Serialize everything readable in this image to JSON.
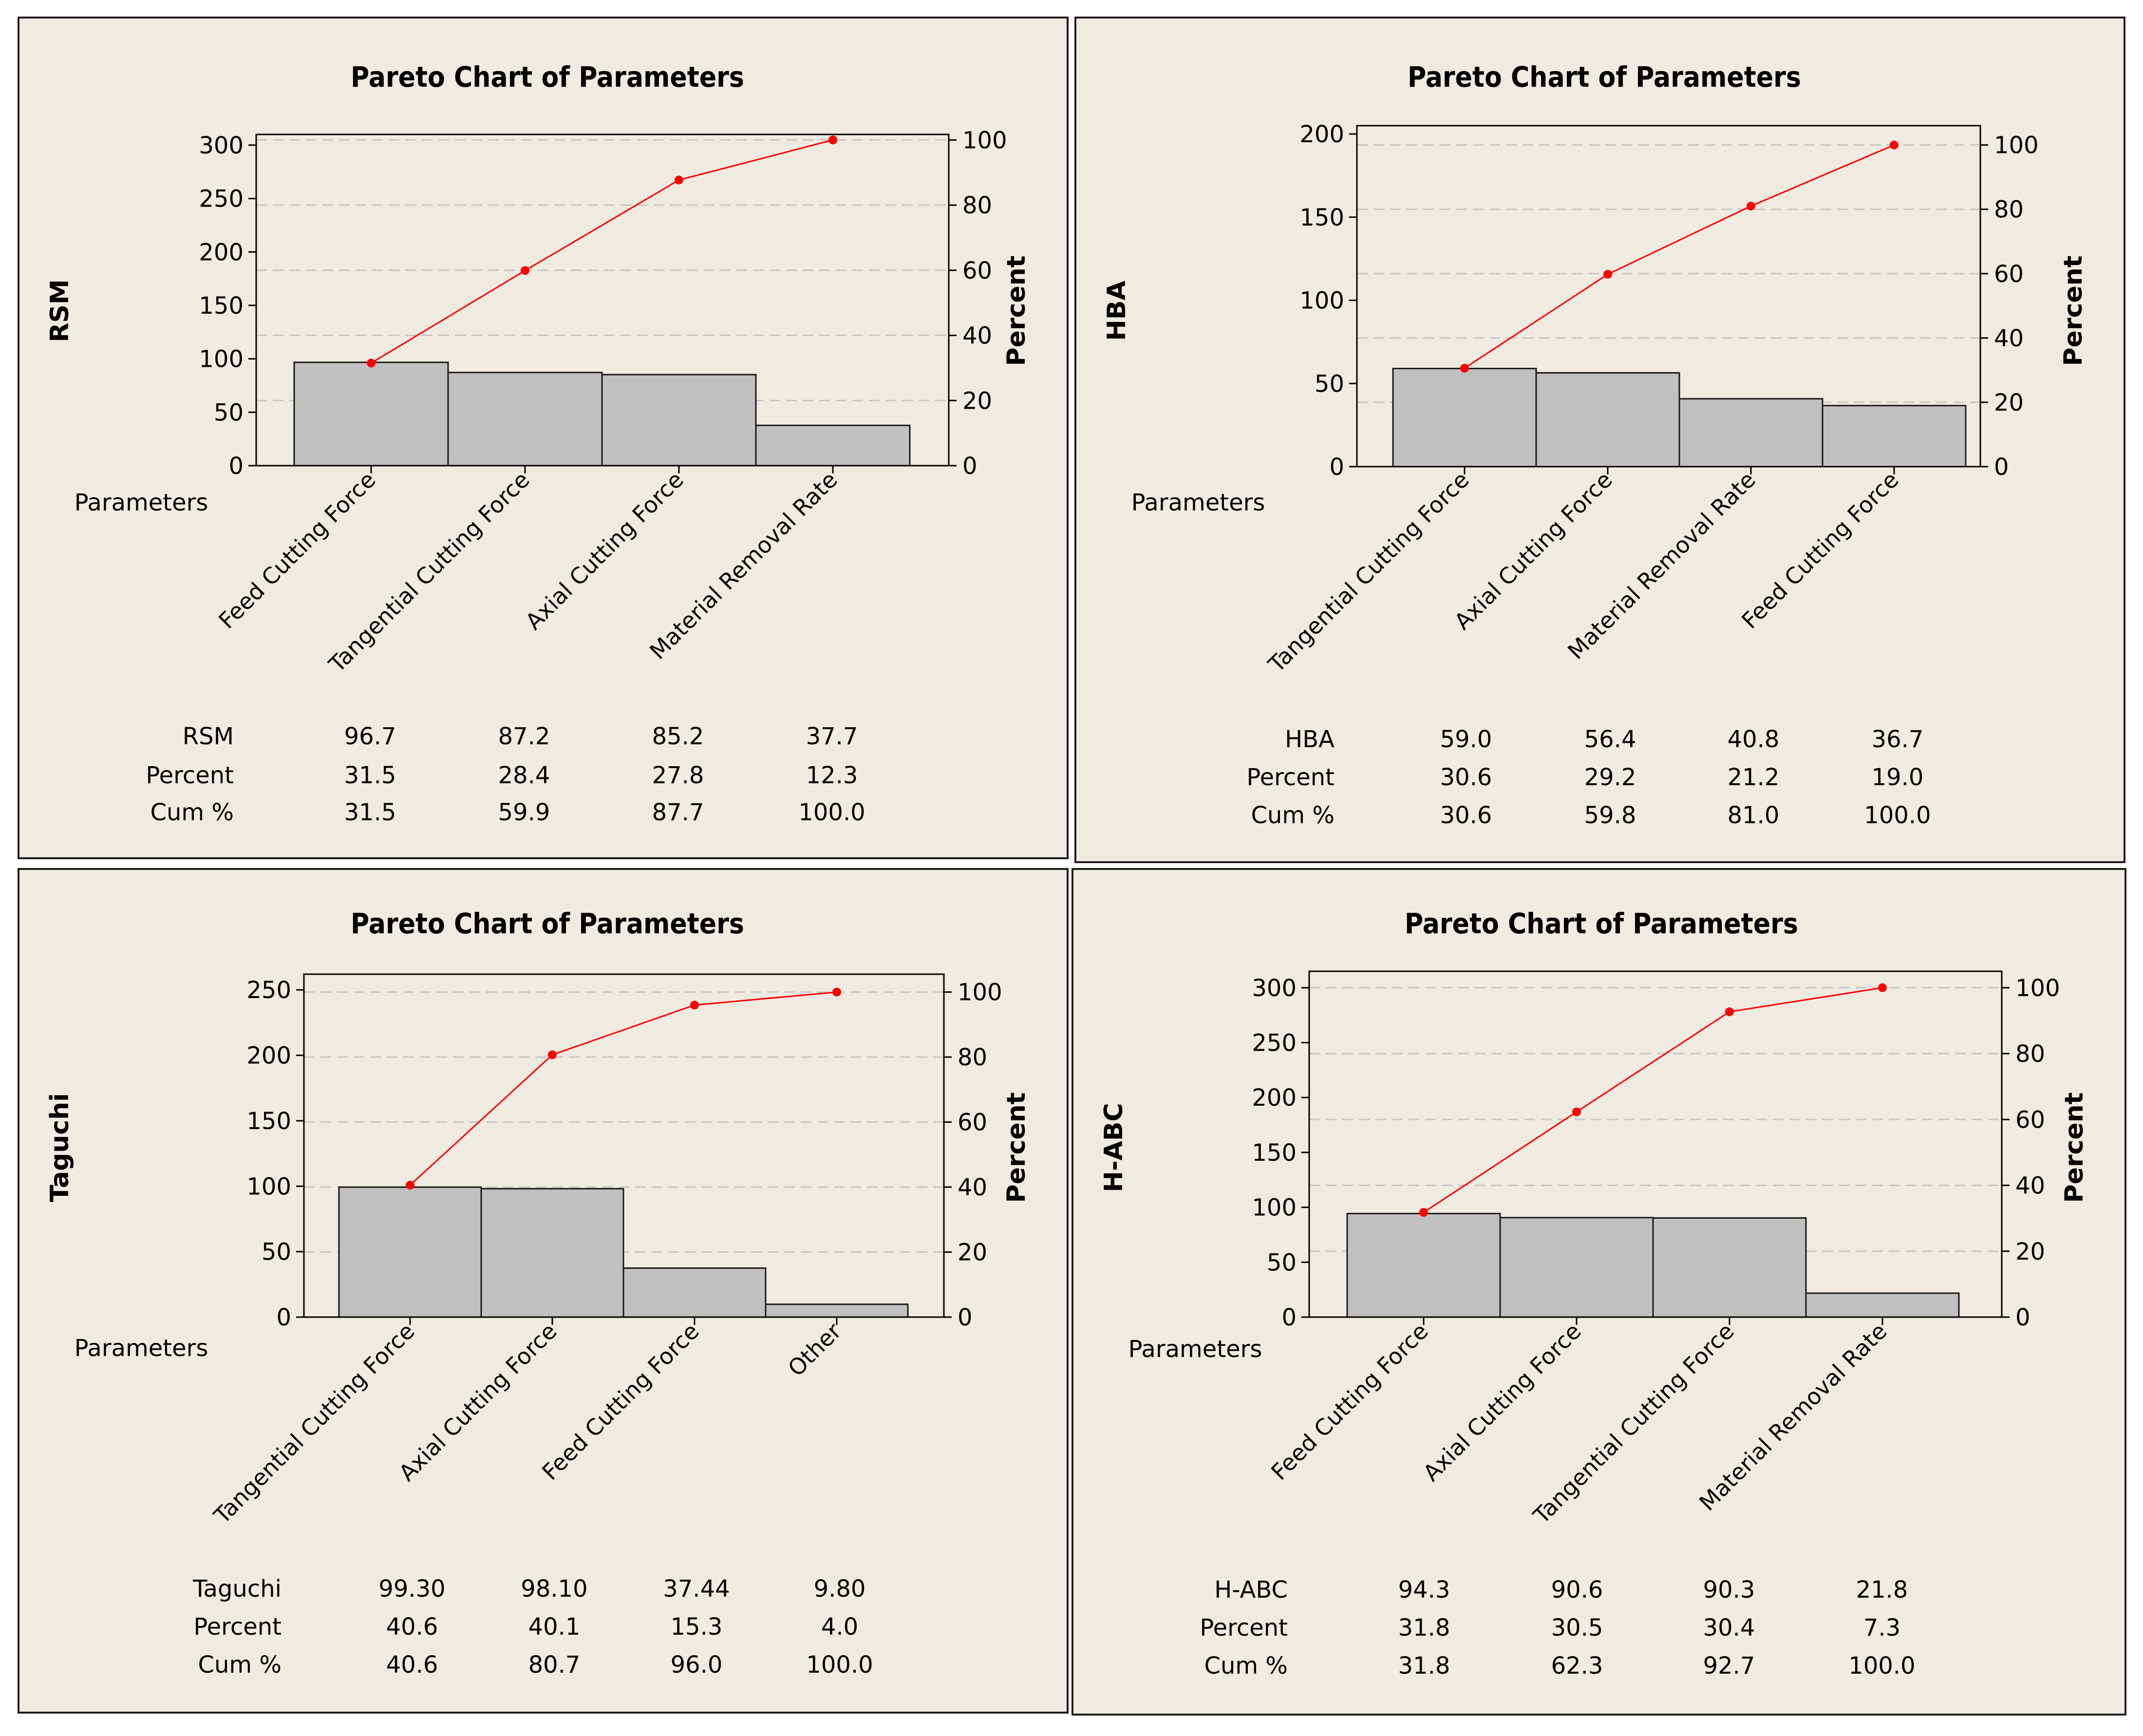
{
  "chart_data": [
    {
      "type": "bar",
      "title": "Pareto Chart of Parameters",
      "ylabel": "RSM",
      "y2label": "Percent",
      "xlabel": "Parameters",
      "ylim": [
        0,
        310
      ],
      "y2lim": [
        0,
        101.7
      ],
      "yticks": [
        0,
        50,
        100,
        150,
        200,
        250,
        300
      ],
      "y2ticks": [
        0,
        20,
        40,
        60,
        80,
        100
      ],
      "categories": [
        "Feed Cutting Force",
        "Tangential Cutting Force",
        "Axial Cutting Force",
        "Material Removal Rate"
      ],
      "values": [
        96.7,
        87.2,
        85.2,
        37.7
      ],
      "percent": [
        31.5,
        28.4,
        27.8,
        12.3
      ],
      "cum_percent": [
        31.5,
        59.9,
        87.7,
        100.0
      ],
      "values_text": [
        "96.7",
        "87.2",
        "85.2",
        "37.7"
      ],
      "percent_text": [
        "31.5",
        "28.4",
        "27.8",
        "12.3"
      ],
      "cum_text": [
        "31.5",
        "59.9",
        "87.7",
        "100.0"
      ],
      "row_labels": [
        "RSM",
        "Percent",
        "Cum %"
      ]
    },
    {
      "type": "bar",
      "title": "Pareto Chart of Parameters",
      "ylabel": "HBA",
      "y2label": "Percent",
      "xlabel": "Parameters",
      "ylim": [
        0,
        205
      ],
      "y2lim": [
        0,
        106
      ],
      "yticks": [
        0,
        50,
        100,
        150,
        200
      ],
      "y2ticks": [
        0,
        20,
        40,
        60,
        80,
        100
      ],
      "categories": [
        "Tangential Cutting Force",
        "Axial Cutting Force",
        "Material Removal Rate",
        "Feed Cutting Force"
      ],
      "values": [
        59.0,
        56.4,
        40.8,
        36.7
      ],
      "percent": [
        30.6,
        29.2,
        21.2,
        19.0
      ],
      "cum_percent": [
        30.6,
        59.8,
        81.0,
        100.0
      ],
      "values_text": [
        "59.0",
        "56.4",
        "40.8",
        "36.7"
      ],
      "percent_text": [
        "30.6",
        "29.2",
        "21.2",
        "19.0"
      ],
      "cum_text": [
        "30.6",
        "59.8",
        "81.0",
        "100.0"
      ],
      "row_labels": [
        "HBA",
        "Percent",
        "Cum %"
      ]
    },
    {
      "type": "bar",
      "title": "Pareto Chart of Parameters",
      "ylabel": "Taguchi",
      "y2label": "Percent",
      "xlabel": "Parameters",
      "ylim": [
        0,
        262
      ],
      "y2lim": [
        0,
        105.5
      ],
      "yticks": [
        0,
        50,
        100,
        150,
        200,
        250
      ],
      "y2ticks": [
        0,
        20,
        40,
        60,
        80,
        100
      ],
      "categories": [
        "Tangential Cutting Force",
        "Axial Cutting Force",
        "Feed Cutting Force",
        "Other"
      ],
      "values": [
        99.3,
        98.1,
        37.44,
        9.8
      ],
      "percent": [
        40.6,
        40.1,
        15.3,
        4.0
      ],
      "cum_percent": [
        40.6,
        80.7,
        96.0,
        100.0
      ],
      "values_text": [
        "99.30",
        "98.10",
        "37.44",
        "9.80"
      ],
      "percent_text": [
        "40.6",
        "40.1",
        "15.3",
        "4.0"
      ],
      "cum_text": [
        "40.6",
        "80.7",
        "96.0",
        "100.0"
      ],
      "row_labels": [
        "Taguchi",
        "Percent",
        "Cum %"
      ]
    },
    {
      "type": "bar",
      "title": "Pareto Chart of Parameters",
      "ylabel": "H-ABC",
      "y2label": "Percent",
      "xlabel": "Parameters",
      "ylim": [
        0,
        315
      ],
      "y2lim": [
        0,
        105
      ],
      "yticks": [
        0,
        50,
        100,
        150,
        200,
        250,
        300
      ],
      "y2ticks": [
        0,
        20,
        40,
        60,
        80,
        100
      ],
      "categories": [
        "Feed Cutting Force",
        "Axial Cutting Force",
        "Tangential Cutting Force",
        "Material Removal Rate"
      ],
      "values": [
        94.3,
        90.6,
        90.3,
        21.8
      ],
      "percent": [
        31.8,
        30.5,
        30.4,
        7.3
      ],
      "cum_percent": [
        31.8,
        62.3,
        92.7,
        100.0
      ],
      "values_text": [
        "94.3",
        "90.6",
        "90.3",
        "21.8"
      ],
      "percent_text": [
        "31.8",
        "30.5",
        "30.4",
        "7.3"
      ],
      "cum_text": [
        "31.8",
        "62.3",
        "92.7",
        "100.0"
      ],
      "row_labels": [
        "H-ABC",
        "Percent",
        "Cum %"
      ]
    }
  ]
}
